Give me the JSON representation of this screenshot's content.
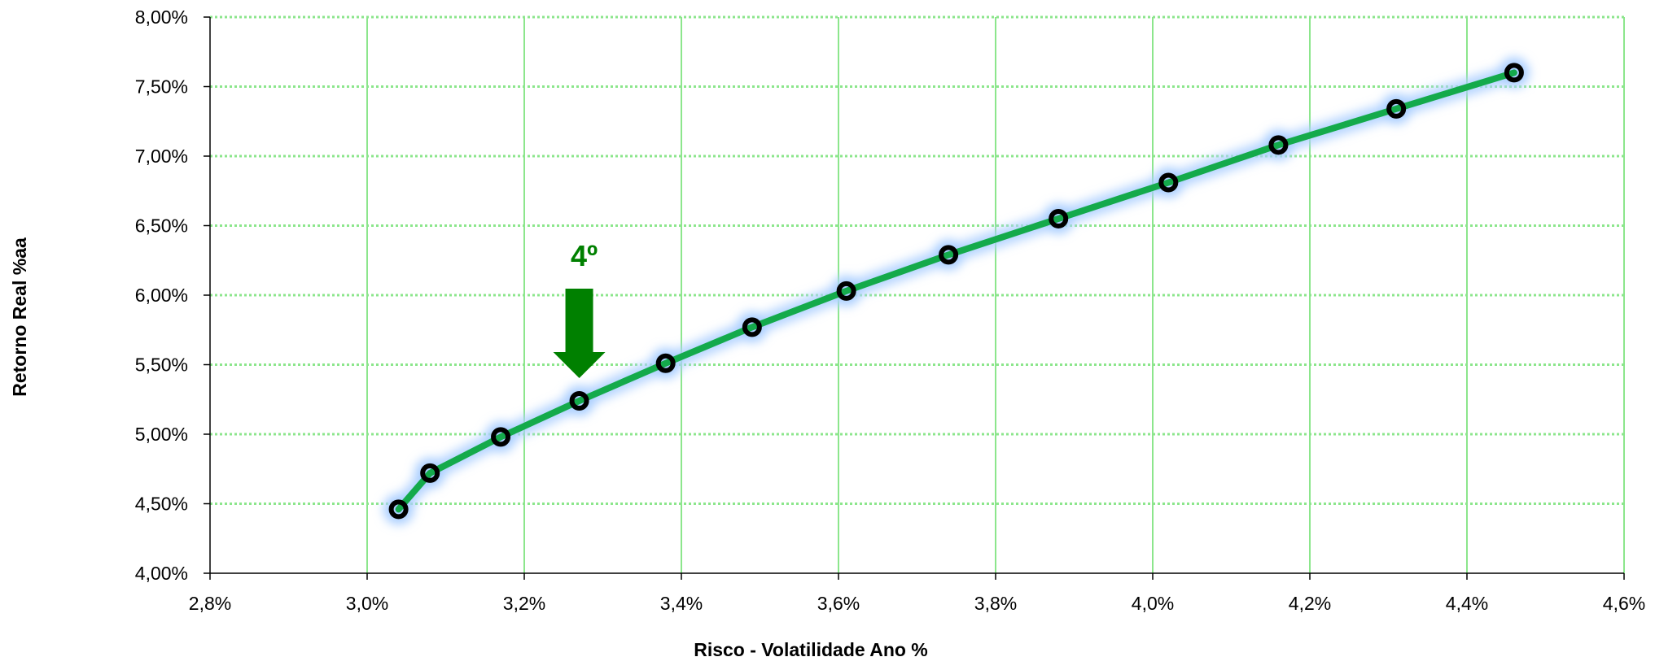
{
  "chart_data": {
    "type": "line",
    "xlabel": "Risco - Volatilidade Ano %",
    "ylabel": "Retorno Real %aa",
    "xlim": [
      2.8,
      4.6
    ],
    "ylim": [
      4.0,
      8.0
    ],
    "x_ticks": [
      2.8,
      3.0,
      3.2,
      3.4,
      3.6,
      3.8,
      4.0,
      4.2,
      4.4,
      4.6
    ],
    "x_tick_labels": [
      "2,8%",
      "3,0%",
      "3,2%",
      "3,4%",
      "3,6%",
      "3,8%",
      "4,0%",
      "4,2%",
      "4,4%",
      "4,6%"
    ],
    "y_ticks": [
      4.0,
      4.5,
      5.0,
      5.5,
      6.0,
      6.5,
      7.0,
      7.5,
      8.0
    ],
    "y_tick_labels": [
      "4,00%",
      "4,50%",
      "5,00%",
      "5,50%",
      "6,00%",
      "6,50%",
      "7,00%",
      "7,50%",
      "8,00%"
    ],
    "grid": true,
    "legend": "none",
    "series": [
      {
        "x": [
          3.04,
          3.08,
          3.17,
          3.27,
          3.38,
          3.49,
          3.61,
          3.74,
          3.88,
          4.02,
          4.16,
          4.31,
          4.46
        ],
        "y": [
          4.46,
          4.72,
          4.98,
          5.24,
          5.51,
          5.77,
          6.03,
          6.29,
          6.55,
          6.81,
          7.08,
          7.34,
          7.6
        ]
      }
    ],
    "annotation": {
      "text": "4º",
      "point_index": 3,
      "color": "#008000"
    },
    "colors": {
      "line": "#14AA4B",
      "marker": "#000000",
      "grid": "#8CE68C",
      "glow": "#AACFFF"
    }
  }
}
